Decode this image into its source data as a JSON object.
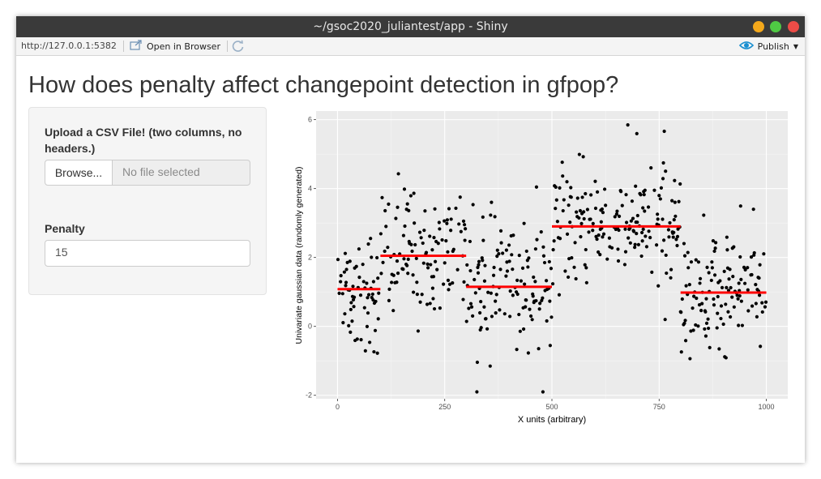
{
  "window": {
    "title": "~/gsoc2020_juliantest/app - Shiny"
  },
  "toolbar": {
    "url": "http://127.0.0.1:5382",
    "open_in_browser": "Open in Browser",
    "publish": "Publish"
  },
  "page": {
    "title": "How does penalty affect changepoint detection in gfpop?"
  },
  "sidebar": {
    "upload_label": "Upload a CSV File! (two columns, no headers.)",
    "browse_button": "Browse...",
    "file_placeholder": "No file selected",
    "penalty_label": "Penalty",
    "penalty_value": "15"
  },
  "colors": {
    "panel_bg": "#ebebeb",
    "points": "#000000",
    "segments": "#ff0000",
    "titlebar": "#3a3a3a"
  },
  "chart_data": {
    "type": "scatter",
    "xlabel": "X units (arbitrary)",
    "ylabel": "Univariate gaussian data (randomly generated)",
    "xlim": [
      -50,
      1050
    ],
    "ylim": [
      -2.1,
      6.25
    ],
    "xticks": [
      0,
      250,
      500,
      750,
      1000
    ],
    "yticks": [
      -2,
      0,
      2,
      4,
      6
    ],
    "grid": true,
    "n_points": 1000,
    "segments": [
      {
        "x_start": 0,
        "x_end": 100,
        "y": 1.08
      },
      {
        "x_start": 100,
        "x_end": 300,
        "y": 2.05
      },
      {
        "x_start": 300,
        "x_end": 500,
        "y": 1.15
      },
      {
        "x_start": 500,
        "x_end": 800,
        "y": 2.9
      },
      {
        "x_start": 800,
        "x_end": 1000,
        "y": 0.98
      }
    ],
    "noise_sd": 0.9,
    "point_x_step": 1
  }
}
